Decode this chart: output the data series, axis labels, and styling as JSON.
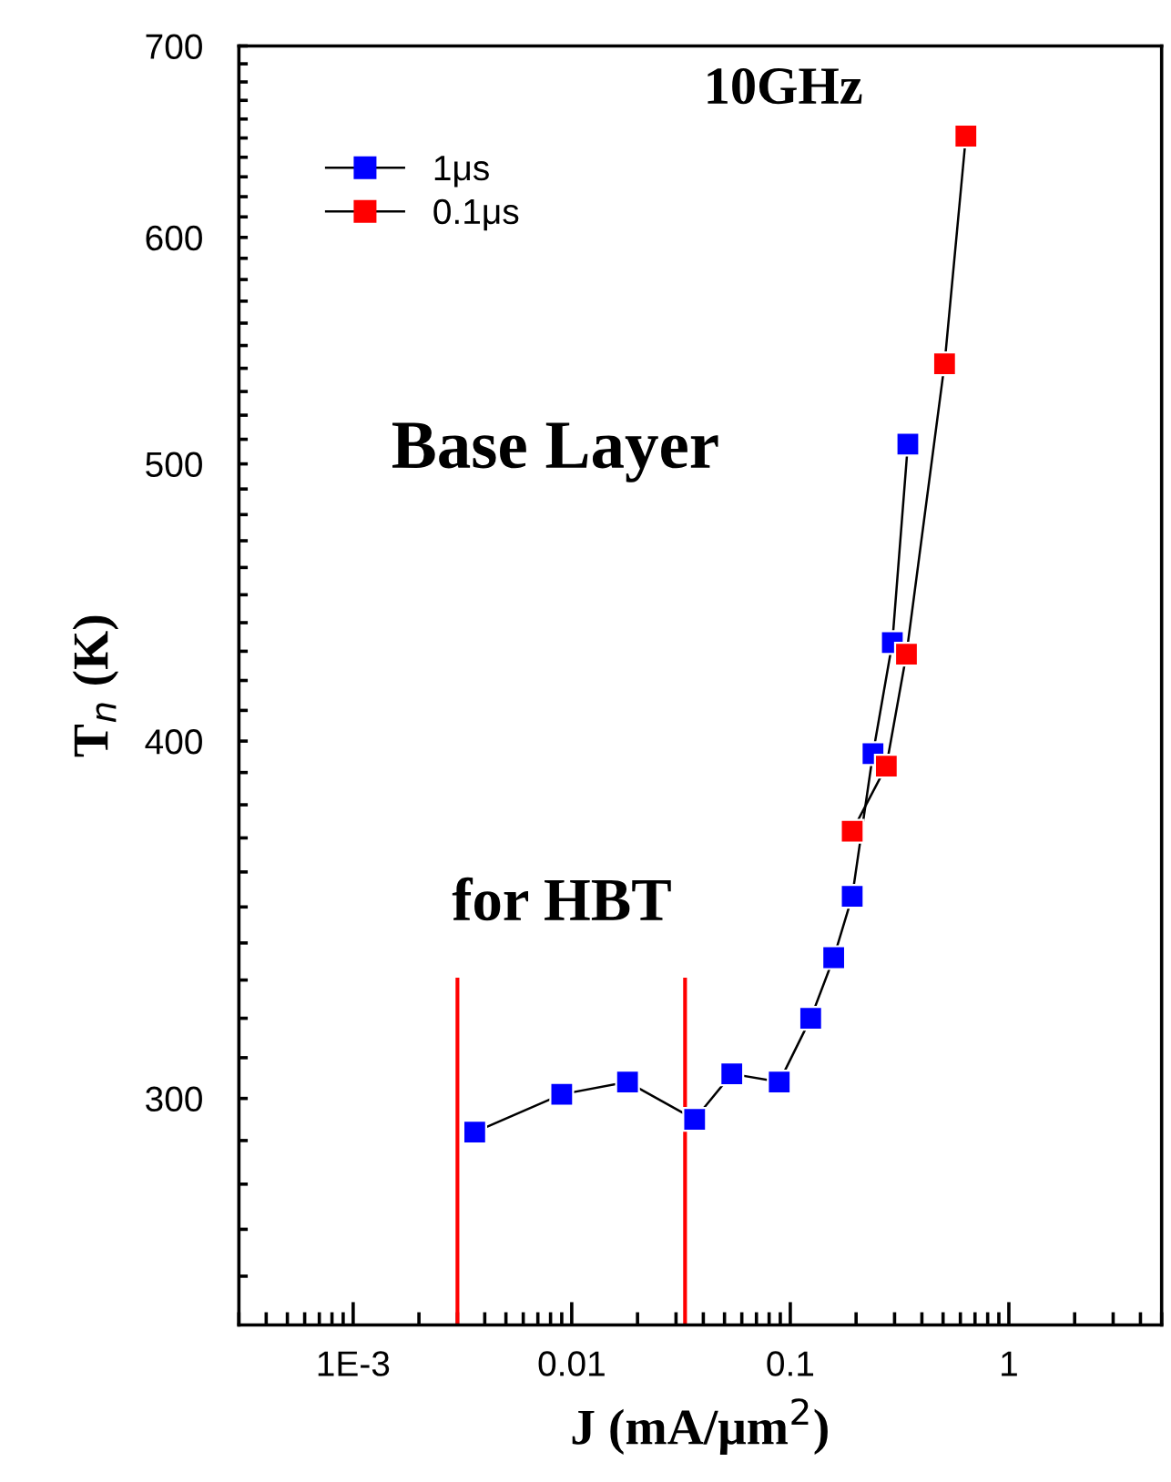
{
  "chart_data": {
    "type": "line",
    "xlabel": "J (mA/μm$^{2}$)",
    "ylabel": "T$_{n}$ (K)",
    "annotations": [
      "10GHz",
      "Base Layer",
      "for HBT"
    ],
    "series": [
      {
        "name": "1μs",
        "color": "#0000ff",
        "x": [
          0.0036,
          0.009,
          0.018,
          0.0365,
          0.054,
          0.089,
          0.124,
          0.158,
          0.192,
          0.239,
          0.293,
          0.345
        ],
        "values": [
          292,
          301,
          304,
          295,
          306,
          304,
          320,
          336,
          353,
          396,
          433,
          508
        ]
      },
      {
        "name": "0.1μs",
        "color": "#ff0000",
        "x": [
          0.192,
          0.275,
          0.34,
          0.508,
          0.636
        ],
        "values": [
          372,
          392,
          429,
          542,
          651
        ]
      }
    ],
    "ref_lines": [
      {
        "axis": "x",
        "value": 0.003,
        "color": "#ff0000"
      },
      {
        "axis": "x",
        "value": 0.033,
        "color": "#ff0000"
      }
    ],
    "log": "xy",
    "xlim": [
      0.0003,
      5
    ],
    "ylim": [
      250,
      700
    ],
    "xticks": [
      {
        "value": 0.001,
        "label": "1E-3"
      },
      0.01,
      0.1,
      1
    ],
    "yticks": [
      {
        "value": 260,
        "label": null
      },
      {
        "value": 270,
        "label": null
      },
      {
        "value": 280,
        "label": null
      },
      {
        "value": 290,
        "label": null
      },
      300,
      {
        "value": 310,
        "label": null
      },
      {
        "value": 320,
        "label": null
      },
      {
        "value": 330,
        "label": null
      },
      {
        "value": 340,
        "label": null
      },
      {
        "value": 350,
        "label": null
      },
      {
        "value": 360,
        "label": null
      },
      {
        "value": 370,
        "label": null
      },
      {
        "value": 380,
        "label": null
      },
      {
        "value": 390,
        "label": null
      },
      400,
      {
        "value": 410,
        "label": null
      },
      {
        "value": 420,
        "label": null
      },
      {
        "value": 430,
        "label": null
      },
      {
        "value": 440,
        "label": null
      },
      {
        "value": 450,
        "label": null
      },
      {
        "value": 460,
        "label": null
      },
      {
        "value": 470,
        "label": null
      },
      {
        "value": 480,
        "label": null
      },
      {
        "value": 490,
        "label": null
      },
      500,
      {
        "value": 510,
        "label": null
      },
      {
        "value": 520,
        "label": null
      },
      {
        "value": 530,
        "label": null
      },
      {
        "value": 540,
        "label": null
      },
      {
        "value": 550,
        "label": null
      },
      {
        "value": 560,
        "label": null
      },
      {
        "value": 570,
        "label": null
      },
      {
        "value": 580,
        "label": null
      },
      {
        "value": 590,
        "label": null
      },
      600,
      {
        "value": 610,
        "label": null
      },
      {
        "value": 620,
        "label": null
      },
      {
        "value": 630,
        "label": null
      },
      {
        "value": 640,
        "label": null
      },
      {
        "value": 650,
        "label": null
      },
      {
        "value": 660,
        "label": null
      },
      {
        "value": 670,
        "label": null
      },
      {
        "value": 680,
        "label": null
      },
      {
        "value": 690,
        "label": null
      },
      700
    ],
    "marker": "square",
    "line_style": "solid",
    "grid": false,
    "legend": "top left"
  }
}
